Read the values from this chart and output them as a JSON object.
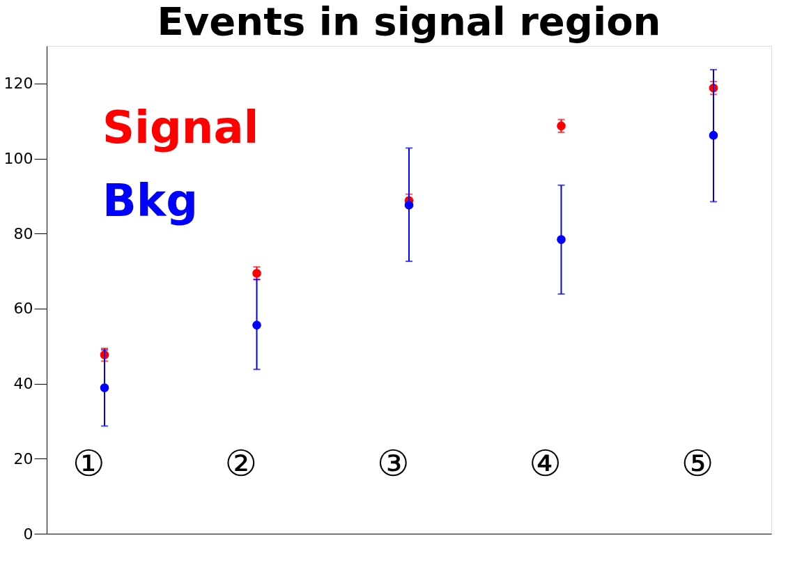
{
  "chart_data": {
    "type": "scatter",
    "title": "Events in signal region",
    "categories": [
      "①",
      "②",
      "③",
      "④",
      "⑤"
    ],
    "series": [
      {
        "name": "Signal",
        "color": "#ff0000",
        "values": [
          47.7,
          69.4,
          88.8,
          108.7,
          118.8
        ],
        "errors": [
          1.7,
          1.7,
          1.7,
          1.7,
          1.7
        ]
      },
      {
        "name": "Bkg",
        "color": "#0000ff",
        "values": [
          38.9,
          55.6,
          87.6,
          78.4,
          106.2
        ],
        "errors": [
          [
            28.7,
            49.0
          ],
          [
            43.8,
            67.8
          ],
          [
            72.6,
            102.8
          ],
          [
            63.9,
            92.9
          ],
          [
            88.5,
            123.7
          ]
        ]
      }
    ],
    "ylim": [
      0,
      130
    ],
    "yticks": [
      0,
      20,
      40,
      60,
      80,
      100,
      120
    ],
    "grid": false,
    "legend": "top left",
    "marker": "circle"
  }
}
